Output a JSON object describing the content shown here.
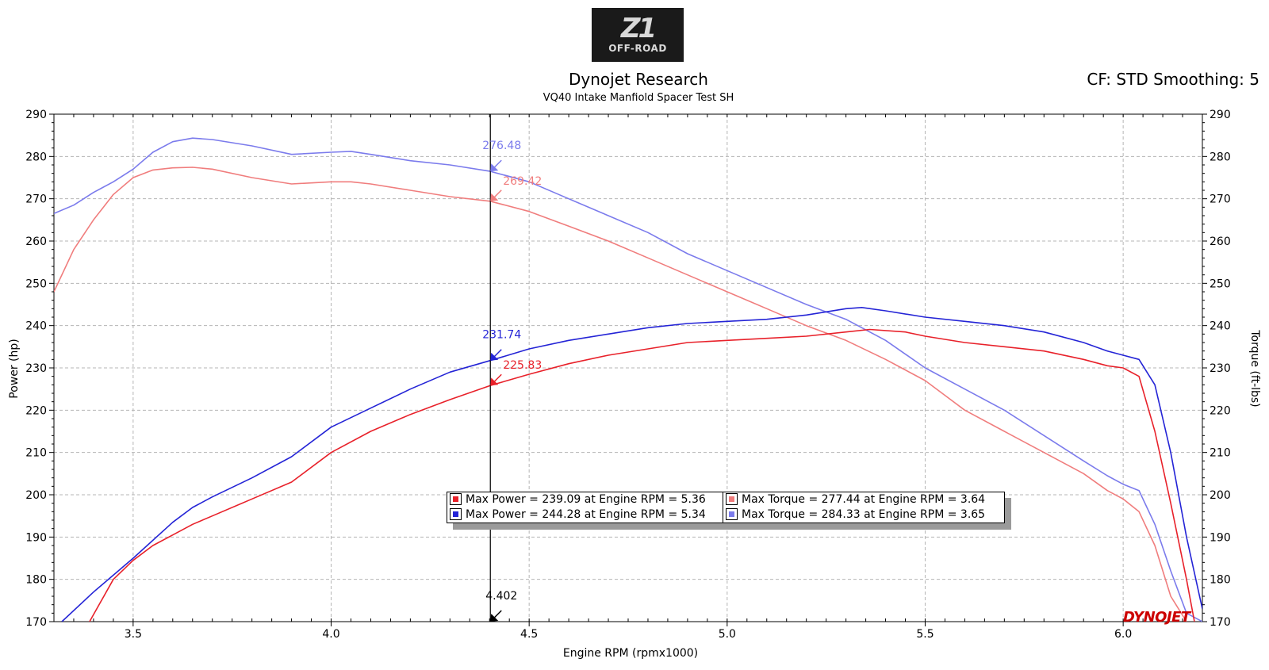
{
  "logo": {
    "mark": "Z1",
    "sub": "OFF-ROAD"
  },
  "header": {
    "title": "Dynojet Research",
    "subtitle": "VQ40 Intake Manfiold Spacer Test SH",
    "cf_info": "CF: STD Smoothing: 5"
  },
  "brand": {
    "dynojet": "DYNOJET"
  },
  "colors": {
    "power_red": "#e8212a",
    "power_blue": "#2424d6",
    "torque_red": "#f07d7d",
    "torque_blue": "#7b7bec"
  },
  "legend": {
    "items": [
      {
        "text": "Max Power = 239.09 at Engine RPM = 5.36",
        "color": "#e8212a"
      },
      {
        "text": "Max Torque = 277.44 at Engine RPM = 3.64",
        "color": "#f07d7d"
      },
      {
        "text": "Max Power = 244.28 at Engine RPM = 5.34",
        "color": "#2424d6"
      },
      {
        "text": "Max Torque = 284.33 at Engine RPM = 3.65",
        "color": "#7b7bec"
      }
    ]
  },
  "chart_data": {
    "type": "line",
    "xlabel": "Engine RPM (rpmx1000)",
    "ylabel": "Power (hp)",
    "y2label": "Torque (ft-lbs)",
    "xlim": [
      3.3,
      6.2
    ],
    "ylim": [
      170,
      290
    ],
    "y2lim": [
      170,
      290
    ],
    "x_ticks": [
      3.5,
      4.0,
      4.5,
      5.0,
      5.5,
      6.0
    ],
    "x_tick_labels": [
      "3.5",
      "4.0",
      "4.5",
      "5.0",
      "5.5",
      "6.0"
    ],
    "y_ticks": [
      170,
      180,
      190,
      200,
      210,
      220,
      230,
      240,
      250,
      260,
      270,
      280,
      290
    ],
    "grid": true,
    "cursor": {
      "x": 4.402,
      "label": "4.402",
      "markers": [
        {
          "series": "torque_blue",
          "value": 276.48,
          "label": "276.48"
        },
        {
          "series": "torque_red",
          "value": 269.42,
          "label": "269.42"
        },
        {
          "series": "power_blue",
          "value": 231.74,
          "label": "231.74"
        },
        {
          "series": "power_red",
          "value": 225.83,
          "label": "225.83"
        }
      ]
    },
    "series": [
      {
        "key": "power_red",
        "color": "#e8212a",
        "x": [
          3.39,
          3.45,
          3.5,
          3.55,
          3.6,
          3.65,
          3.7,
          3.8,
          3.9,
          4.0,
          4.1,
          4.2,
          4.3,
          4.402,
          4.5,
          4.6,
          4.7,
          4.8,
          4.9,
          5.0,
          5.1,
          5.2,
          5.3,
          5.36,
          5.45,
          5.5,
          5.6,
          5.7,
          5.8,
          5.9,
          5.96,
          6.0,
          6.04,
          6.08,
          6.12,
          6.16,
          6.18
        ],
        "y": [
          170,
          180,
          184.5,
          188,
          190.5,
          193,
          195,
          199,
          203,
          210,
          215,
          219,
          222.5,
          225.83,
          228.5,
          231,
          233,
          234.5,
          236,
          236.5,
          237,
          237.5,
          238.5,
          239.09,
          238.5,
          237.5,
          236,
          235,
          234,
          232,
          230.5,
          230,
          228,
          215,
          198,
          180,
          170
        ]
      },
      {
        "key": "power_blue",
        "color": "#2424d6",
        "x": [
          3.32,
          3.4,
          3.5,
          3.6,
          3.65,
          3.7,
          3.8,
          3.9,
          4.0,
          4.1,
          4.2,
          4.3,
          4.402,
          4.5,
          4.6,
          4.7,
          4.8,
          4.9,
          5.0,
          5.1,
          5.2,
          5.3,
          5.34,
          5.4,
          5.5,
          5.6,
          5.7,
          5.8,
          5.9,
          5.96,
          6.0,
          6.04,
          6.08,
          6.12,
          6.16,
          6.2
        ],
        "y": [
          170,
          177,
          185,
          193.5,
          197,
          199.5,
          204,
          209,
          216,
          220.5,
          225,
          229,
          231.74,
          234.5,
          236.5,
          238,
          239.5,
          240.5,
          241,
          241.5,
          242.5,
          244,
          244.28,
          243.5,
          242,
          241,
          240,
          238.5,
          236,
          234,
          233,
          232,
          226,
          210,
          190,
          173
        ]
      },
      {
        "key": "torque_red",
        "color": "#f07d7d",
        "x": [
          3.3,
          3.35,
          3.4,
          3.45,
          3.5,
          3.55,
          3.6,
          3.65,
          3.7,
          3.8,
          3.9,
          4.0,
          4.05,
          4.1,
          4.2,
          4.3,
          4.402,
          4.5,
          4.6,
          4.7,
          4.8,
          4.9,
          5.0,
          5.1,
          5.2,
          5.3,
          5.4,
          5.5,
          5.6,
          5.7,
          5.8,
          5.9,
          5.96,
          6.0,
          6.04,
          6.08,
          6.12,
          6.16
        ],
        "y": [
          248,
          258,
          265,
          271,
          275,
          276.8,
          277.3,
          277.44,
          277,
          275,
          273.5,
          274,
          274,
          273.5,
          272,
          270.5,
          269.42,
          267,
          263.5,
          260,
          256,
          252,
          248,
          244,
          240,
          236.5,
          232,
          227,
          220,
          215,
          210,
          205,
          201,
          199,
          196,
          188,
          176,
          170
        ]
      },
      {
        "key": "torque_blue",
        "color": "#7b7bec",
        "x": [
          3.3,
          3.35,
          3.4,
          3.45,
          3.5,
          3.55,
          3.6,
          3.65,
          3.7,
          3.8,
          3.9,
          4.0,
          4.05,
          4.1,
          4.2,
          4.3,
          4.402,
          4.5,
          4.6,
          4.7,
          4.8,
          4.9,
          5.0,
          5.1,
          5.2,
          5.3,
          5.4,
          5.5,
          5.6,
          5.7,
          5.8,
          5.9,
          5.96,
          6.0,
          6.04,
          6.08,
          6.12,
          6.16,
          6.2
        ],
        "y": [
          266.5,
          268.5,
          271.5,
          274,
          277,
          281,
          283.5,
          284.33,
          284,
          282.5,
          280.5,
          281,
          281.2,
          280.5,
          279,
          278,
          276.48,
          274,
          270,
          266,
          262,
          257,
          253,
          249,
          245,
          241.5,
          236.5,
          230,
          225,
          220,
          214,
          208,
          204.5,
          202.5,
          201,
          193,
          182,
          172,
          170
        ]
      }
    ]
  }
}
